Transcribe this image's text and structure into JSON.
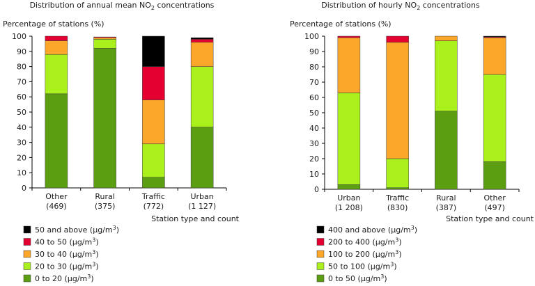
{
  "colors": {
    "axis": "#000000",
    "text": "#1a1a1a",
    "bar_outline": "#3a3a3a"
  },
  "chart_data": [
    {
      "type": "bar",
      "stacked": true,
      "title_prefix": "Distribution of annual mean NO",
      "title_sub": "2",
      "title_suffix": " concentrations",
      "ylabel": "Percentage of stations (%)",
      "xlabel": "Station type and count",
      "ylim": [
        0,
        100
      ],
      "yticks": [
        0,
        10,
        20,
        30,
        40,
        50,
        60,
        70,
        80,
        90,
        100
      ],
      "categories": [
        {
          "name": "Other",
          "count": "(469)"
        },
        {
          "name": "Rural",
          "count": "(375)"
        },
        {
          "name": "Traffic",
          "count": "(772)"
        },
        {
          "name": "Urban",
          "count": "(1 127)"
        }
      ],
      "series": [
        {
          "name": "0 to 20",
          "color": "#5c9e12",
          "values": [
            62,
            92,
            7,
            40
          ]
        },
        {
          "name": "20 to 30",
          "color": "#aaf01c",
          "values": [
            26,
            6,
            22,
            40
          ]
        },
        {
          "name": "30 to 40",
          "color": "#fda72a",
          "values": [
            9,
            1,
            29,
            16
          ]
        },
        {
          "name": "40 to 50",
          "color": "#e40031",
          "values": [
            3,
            0.5,
            22,
            2
          ]
        },
        {
          "name": "50 and above",
          "color": "#000000",
          "values": [
            0,
            0,
            20,
            1
          ]
        }
      ],
      "legend_unit_prefix": " (µg/m",
      "legend_unit_sup": "3",
      "legend_unit_suffix": ")",
      "legend_position": "bottom-left"
    },
    {
      "type": "bar",
      "stacked": true,
      "title_prefix": "Distribution of hourly NO",
      "title_sub": "2",
      "title_suffix": " concentrations",
      "ylabel": "Percentage of stations (%)",
      "xlabel": "Station type and count",
      "ylim": [
        0,
        100
      ],
      "yticks": [
        0,
        10,
        20,
        30,
        40,
        50,
        60,
        70,
        80,
        90,
        100
      ],
      "categories": [
        {
          "name": "Urban",
          "count": "(1 208)"
        },
        {
          "name": "Traffic",
          "count": "(830)"
        },
        {
          "name": "Rural",
          "count": "(387)"
        },
        {
          "name": "Other",
          "count": "(497)"
        }
      ],
      "series": [
        {
          "name": "0 to 50",
          "color": "#5c9e12",
          "values": [
            3,
            1,
            51,
            18
          ]
        },
        {
          "name": "50 to 100",
          "color": "#aaf01c",
          "values": [
            60,
            19,
            46,
            57
          ]
        },
        {
          "name": "100 to 200",
          "color": "#fda72a",
          "values": [
            36,
            76,
            3,
            24
          ]
        },
        {
          "name": "200 to 400",
          "color": "#e40031",
          "values": [
            1,
            4,
            0,
            0.5
          ]
        },
        {
          "name": "400 and above",
          "color": "#000000",
          "values": [
            0,
            0,
            0,
            0.5
          ]
        }
      ],
      "legend_unit_prefix": " (µg/m",
      "legend_unit_sup": "3",
      "legend_unit_suffix": ")",
      "legend_position": "bottom-left"
    }
  ]
}
